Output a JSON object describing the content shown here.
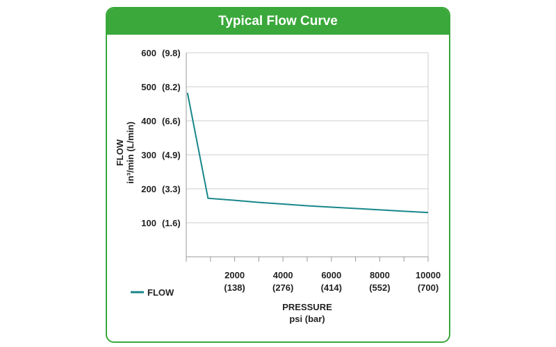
{
  "title": "Typical Flow Curve",
  "colors": {
    "accent": "#3aa83a",
    "line": "#17868a",
    "grid": "#cccccc",
    "axis": "#999999"
  },
  "chart_data": {
    "type": "line",
    "title": "Typical Flow Curve",
    "xlabel": "PRESSURE",
    "xlabel_units": "psi (bar)",
    "ylabel": "FLOW",
    "ylabel_units": "in³/min (L/min)",
    "xlim": [
      0,
      10000
    ],
    "ylim": [
      0,
      600
    ],
    "grid": true,
    "legend": "bottom-left",
    "x_ticks": [
      {
        "value": 2000,
        "primary": "2000",
        "secondary": "(138)"
      },
      {
        "value": 4000,
        "primary": "4000",
        "secondary": "(276)"
      },
      {
        "value": 6000,
        "primary": "6000",
        "secondary": "(414)"
      },
      {
        "value": 8000,
        "primary": "8000",
        "secondary": "(552)"
      },
      {
        "value": 10000,
        "primary": "10000",
        "secondary": "(700)"
      }
    ],
    "y_ticks": [
      {
        "value": 100,
        "primary": "100",
        "secondary": "(1.6)"
      },
      {
        "value": 200,
        "primary": "200",
        "secondary": "(3.3)"
      },
      {
        "value": 300,
        "primary": "300",
        "secondary": "(4.9)"
      },
      {
        "value": 400,
        "primary": "400",
        "secondary": "(6.6)"
      },
      {
        "value": 500,
        "primary": "500",
        "secondary": "(8.2)"
      },
      {
        "value": 600,
        "primary": "600",
        "secondary": "(9.8)"
      }
    ],
    "series": [
      {
        "name": "FLOW",
        "x": [
          50,
          900,
          2000,
          3000,
          4000,
          5000,
          6000,
          7000,
          8000,
          9000,
          10000
        ],
        "y": [
          482,
          172,
          166,
          160,
          155,
          150,
          146,
          142,
          138,
          134,
          130
        ]
      }
    ]
  }
}
